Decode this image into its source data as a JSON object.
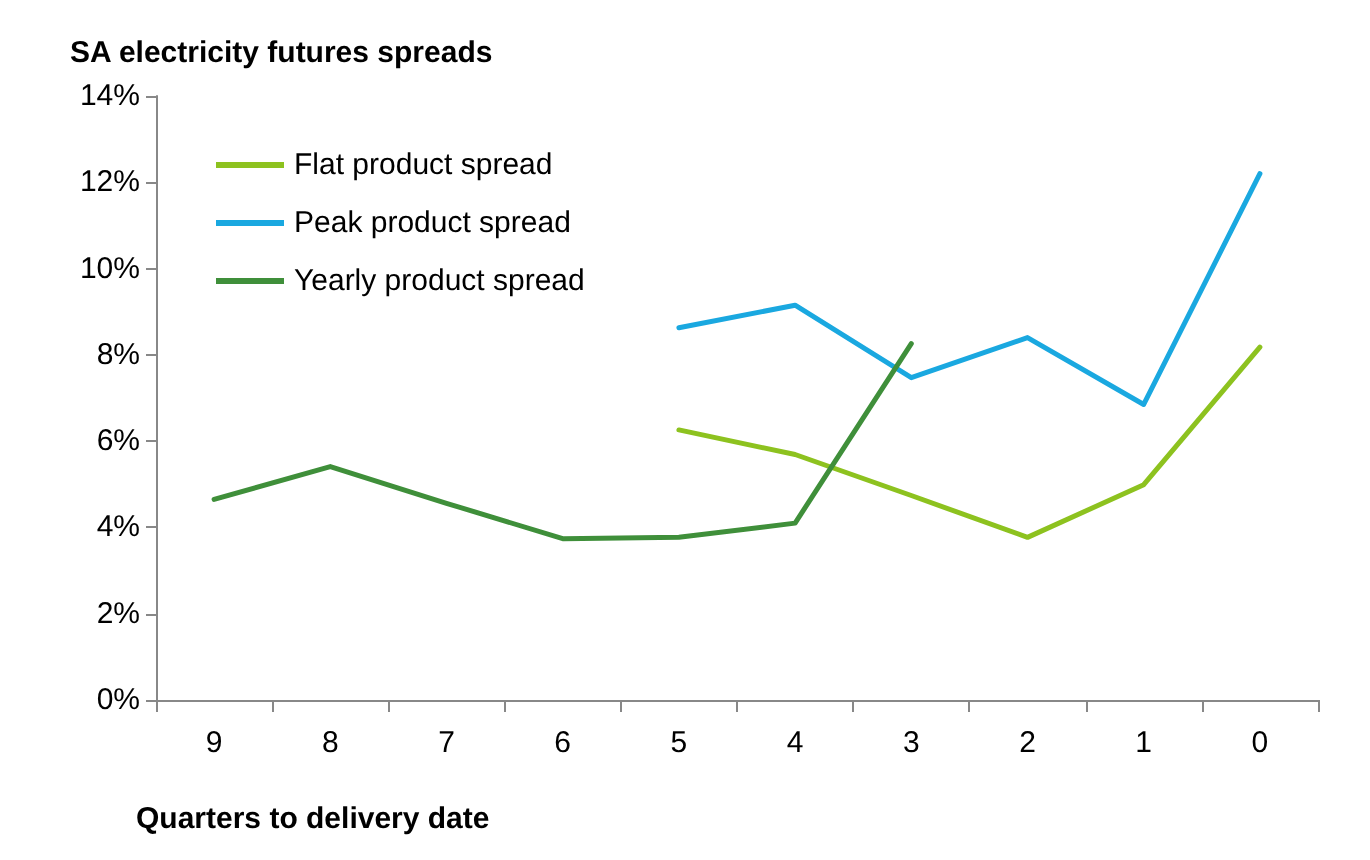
{
  "chart_data": {
    "type": "line",
    "title": "SA electricity futures spreads",
    "xlabel": "Quarters to delivery date",
    "categories": [
      "9",
      "8",
      "7",
      "6",
      "5",
      "4",
      "3",
      "2",
      "1",
      "0"
    ],
    "series": [
      {
        "name": "Flat product spread",
        "color": "#8dc21f",
        "values": [
          null,
          null,
          null,
          null,
          6.26,
          5.69,
          4.74,
          3.77,
          4.99,
          8.18
        ]
      },
      {
        "name": "Peak product spread",
        "color": "#1aa8e0",
        "values": [
          null,
          null,
          null,
          null,
          8.63,
          9.15,
          7.47,
          8.4,
          6.85,
          12.2
        ]
      },
      {
        "name": "Yearly product spread",
        "color": "#3f8f3a",
        "values": [
          4.65,
          5.41,
          4.56,
          3.74,
          3.77,
          4.1,
          8.26,
          null,
          null,
          null
        ]
      }
    ],
    "ylim": [
      0,
      14
    ],
    "yticks": [
      {
        "value": 0,
        "label": "0%"
      },
      {
        "value": 2,
        "label": "2%"
      },
      {
        "value": 4,
        "label": "4%"
      },
      {
        "value": 6,
        "label": "6%"
      },
      {
        "value": 8,
        "label": "8%"
      },
      {
        "value": 10,
        "label": "10%"
      },
      {
        "value": 12,
        "label": "12%"
      },
      {
        "value": 14,
        "label": "14%"
      }
    ],
    "grid": false,
    "legend": "top left",
    "marker": "none",
    "line_style": "solid"
  }
}
